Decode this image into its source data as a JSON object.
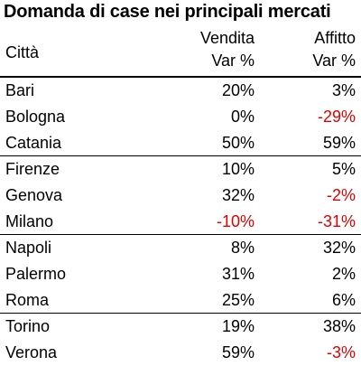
{
  "chart_data": {
    "type": "table",
    "title": "Domanda di case nei principali mercati",
    "columns": {
      "city": "Città",
      "sale_line1": "Vendita",
      "sale_line2": "Var %",
      "rent_line1": "Affitto",
      "rent_line2": "Var %"
    },
    "rows": [
      {
        "city": "Bari",
        "sale": "20%",
        "rent": "3%",
        "sale_value": 20,
        "rent_value": 3
      },
      {
        "city": "Bologna",
        "sale": "0%",
        "rent": "-29%",
        "sale_value": 0,
        "rent_value": -29
      },
      {
        "city": "Catania",
        "sale": "50%",
        "rent": "59%",
        "sale_value": 50,
        "rent_value": 59
      },
      {
        "city": "Firenze",
        "sale": "10%",
        "rent": "5%",
        "sale_value": 10,
        "rent_value": 5
      },
      {
        "city": "Genova",
        "sale": "32%",
        "rent": "-2%",
        "sale_value": 32,
        "rent_value": -2
      },
      {
        "city": "Milano",
        "sale": "-10%",
        "rent": "-31%",
        "sale_value": -10,
        "rent_value": -31
      },
      {
        "city": "Napoli",
        "sale": "8%",
        "rent": "32%",
        "sale_value": 8,
        "rent_value": 32
      },
      {
        "city": "Palermo",
        "sale": "31%",
        "rent": "2%",
        "sale_value": 31,
        "rent_value": 2
      },
      {
        "city": "Roma",
        "sale": "25%",
        "rent": "6%",
        "sale_value": 25,
        "rent_value": 6
      },
      {
        "city": "Torino",
        "sale": "19%",
        "rent": "38%",
        "sale_value": 19,
        "rent_value": 38
      },
      {
        "city": "Verona",
        "sale": "59%",
        "rent": "-3%",
        "sale_value": 59,
        "rent_value": -3
      }
    ],
    "group_ends": [
      2,
      5,
      8
    ],
    "negative_color": "#e00000",
    "text_color": "#000000"
  }
}
